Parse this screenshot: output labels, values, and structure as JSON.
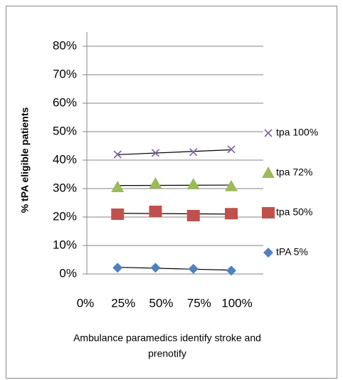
{
  "chart_data": {
    "type": "scatter",
    "y_label": "% tPA eligible patients",
    "x_label_lines": [
      "Ambulance paramedics identify stroke and",
      "prenotify"
    ],
    "xlim": [
      0,
      100
    ],
    "xticks": [
      {
        "value": 0,
        "label": "0%"
      },
      {
        "value": 25,
        "label": "25%"
      },
      {
        "value": 50,
        "label": "50%"
      },
      {
        "value": 75,
        "label": "75%"
      },
      {
        "value": 100,
        "label": "100%"
      }
    ],
    "ylim": [
      0,
      80
    ],
    "yticks": [
      {
        "value": 0,
        "label": "0%"
      },
      {
        "value": 10,
        "label": "10%"
      },
      {
        "value": 20,
        "label": "20%"
      },
      {
        "value": 30,
        "label": "30%"
      },
      {
        "value": 40,
        "label": "40%"
      },
      {
        "value": 50,
        "label": "50%"
      },
      {
        "value": 60,
        "label": "60%"
      },
      {
        "value": 70,
        "label": "70%"
      },
      {
        "value": 80,
        "label": "80%"
      }
    ],
    "grid": true,
    "trendline": true,
    "legend": "right",
    "series": [
      {
        "name": "tpa 100%",
        "color": "#7d60a0",
        "marker": "x",
        "x": [
          25,
          50,
          75,
          100
        ],
        "values": [
          42,
          42.5,
          42.8,
          43.8
        ]
      },
      {
        "name": "tpa 72%",
        "color": "#9bbb59",
        "marker": "triangle",
        "x": [
          25,
          50,
          75,
          100
        ],
        "values": [
          30.5,
          31.8,
          31.5,
          30.8
        ]
      },
      {
        "name": "tpa 50%",
        "color": "#c0504d",
        "marker": "square",
        "x": [
          25,
          50,
          75,
          100
        ],
        "values": [
          21,
          22,
          20.5,
          21.2
        ]
      },
      {
        "name": "tPA 5%",
        "color": "#4f81bd",
        "marker": "diamond",
        "x": [
          25,
          50,
          75,
          100
        ],
        "values": [
          2.2,
          2.2,
          1.8,
          1.2
        ]
      }
    ]
  }
}
